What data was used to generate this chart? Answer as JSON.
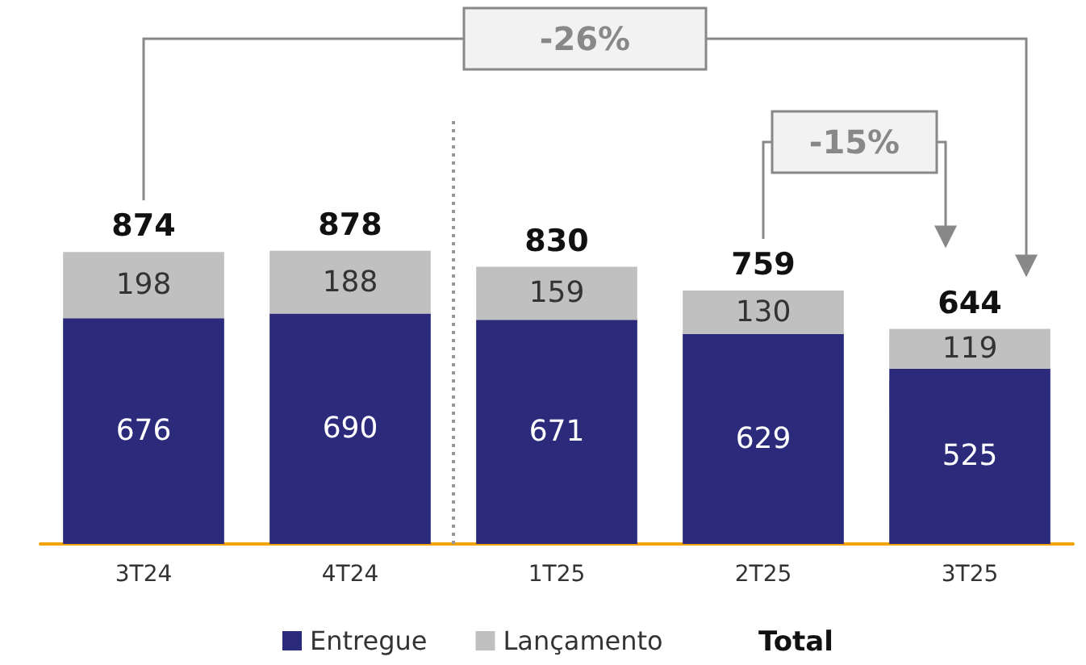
{
  "chart_data": {
    "type": "bar",
    "stacked": true,
    "data_labels": true,
    "legend": "bottom",
    "categories": [
      "3T24",
      "4T24",
      "1T25",
      "2T25",
      "3T25"
    ],
    "series": [
      {
        "name": "Entregue",
        "color": "#2b2a7b",
        "values": [
          676,
          690,
          671,
          629,
          525
        ]
      },
      {
        "name": "Lançamento",
        "color": "#c0c0c0",
        "values": [
          198,
          188,
          159,
          130,
          119
        ]
      }
    ],
    "totals": [
      "874",
      "878",
      "830",
      "759",
      "644"
    ],
    "annotations": [
      "-26%",
      "-15%",
      "Total"
    ]
  }
}
